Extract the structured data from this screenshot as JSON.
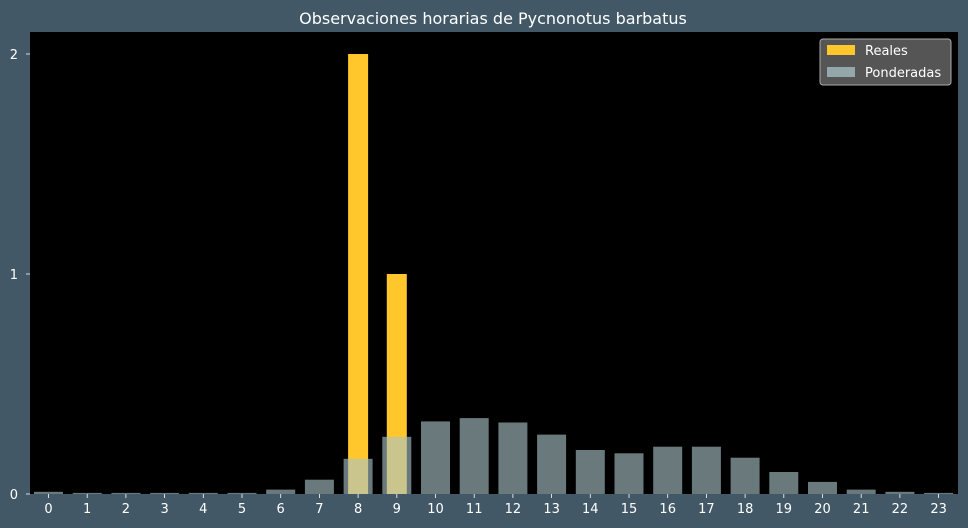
{
  "chart_data": {
    "type": "bar",
    "title": "Observaciones horarias de Pycnonotus barbatus",
    "xlabel": "",
    "ylabel": "",
    "categories": [
      "0",
      "1",
      "2",
      "3",
      "4",
      "5",
      "6",
      "7",
      "8",
      "9",
      "10",
      "11",
      "12",
      "13",
      "14",
      "15",
      "16",
      "17",
      "18",
      "19",
      "20",
      "21",
      "22",
      "23"
    ],
    "series": [
      {
        "name": "Reales",
        "color": "#ffc72c",
        "values": [
          0,
          0,
          0,
          0,
          0,
          0,
          0,
          0,
          2,
          1,
          0,
          0,
          0,
          0,
          0,
          0,
          0,
          0,
          0,
          0,
          0,
          0,
          0,
          0
        ]
      },
      {
        "name": "Ponderadas",
        "color": "#a9c3c8",
        "values": [
          0.01,
          0.005,
          0.005,
          0.005,
          0.005,
          0.005,
          0.02,
          0.065,
          0.16,
          0.26,
          0.33,
          0.345,
          0.325,
          0.27,
          0.2,
          0.185,
          0.215,
          0.215,
          0.165,
          0.1,
          0.055,
          0.02,
          0.01,
          0.005
        ]
      }
    ],
    "yticks": [
      "0",
      "1",
      "2"
    ],
    "ylim": [
      0,
      2.1
    ],
    "grid": false,
    "legend_position": "top-right",
    "colors": {
      "background": "#425866",
      "plot_background": "#000000",
      "text": "#ffffff",
      "legend_background": "#555555",
      "legend_border": "#aaaaaa"
    }
  }
}
